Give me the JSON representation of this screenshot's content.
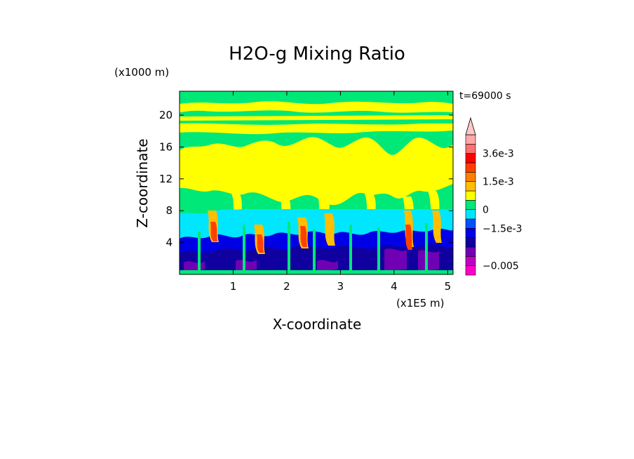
{
  "chart_data": {
    "type": "heatmap",
    "title": "H2O-g Mixing Ratio",
    "xlabel": "X-coordinate",
    "ylabel": "Z-coordinate",
    "x_unit": "(x1E5 m)",
    "y_unit": "(x1000 m)",
    "time_label": "t=69000 s",
    "xlim": [
      0,
      5.1
    ],
    "ylim": [
      0,
      23
    ],
    "x_ticks": [
      "1",
      "2",
      "3",
      "4",
      "5"
    ],
    "y_ticks": [
      "4",
      "8",
      "12",
      "16",
      "20"
    ],
    "colorbar": {
      "labels": [
        "3.6e-3",
        "1.5e-3",
        "0",
        "−1.5e-3",
        "−0.005"
      ],
      "colors": [
        "#ff00c8",
        "#c000c8",
        "#7000b4",
        "#1000a0",
        "#0000e6",
        "#0050ff",
        "#00e6ff",
        "#00e878",
        "#ffff00",
        "#ffbe00",
        "#ff8000",
        "#ff4000",
        "#ff0000",
        "#ff7070",
        "#ffa8a8"
      ]
    },
    "layers": [
      {
        "z_range": [
          0,
          1.5
        ],
        "level": "−0.005 to −1.5e-3",
        "color": "#1000a0"
      },
      {
        "z_range": [
          1.5,
          5.5
        ],
        "level": "−1.5e-3",
        "color": "#0000e6"
      },
      {
        "z_range": [
          5.5,
          8.2
        ],
        "level": "−1e-3",
        "color": "#00e6ff"
      },
      {
        "z_range": [
          8.2,
          23
        ],
        "level": "0",
        "color": "#00e878"
      },
      {
        "z_range": [
          9,
          21.5
        ],
        "level": "> 0 (patches)",
        "color": "#ffff00"
      }
    ]
  }
}
